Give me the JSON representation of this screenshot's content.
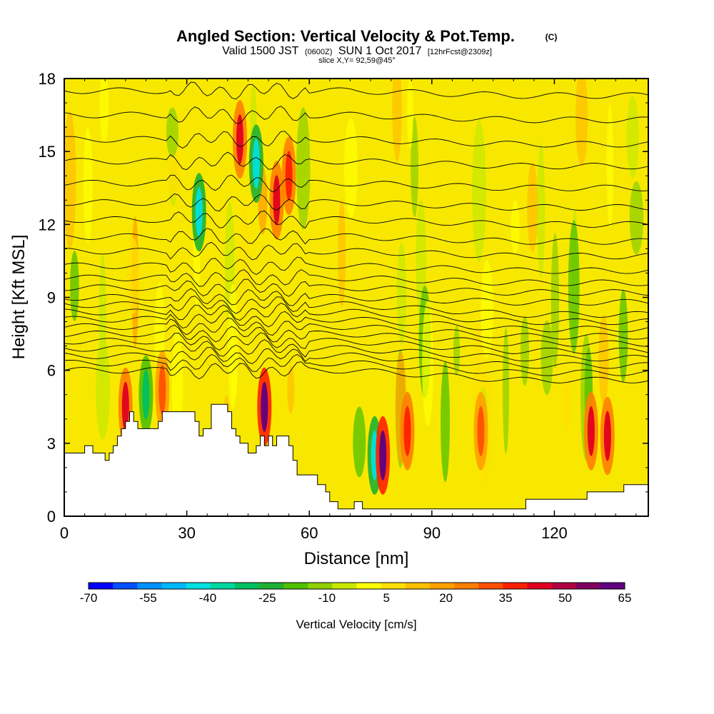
{
  "chart_data": {
    "type": "heatmap",
    "title": "Angled Section: Vertical Velocity & Pot.Temp.",
    "title_mark": "(C)",
    "subtitle_valid": "Valid 1500 JST",
    "subtitle_utc": "(0600Z)",
    "subtitle_date": "SUN 1 Oct 2017",
    "subtitle_fcst": "[12hrFcst@2309z]",
    "slice_label": "slice X,Y= 92,59@45°",
    "xlabel": "Distance [nm]",
    "ylabel": "Height [Kft MSL]",
    "xlim": [
      0,
      143
    ],
    "ylim": [
      0,
      18
    ],
    "xticks": [
      0,
      30,
      60,
      90,
      120
    ],
    "xtick_labels": [
      "0",
      "30",
      "60",
      "90",
      "120"
    ],
    "yticks": [
      0,
      3,
      6,
      9,
      12,
      15,
      18
    ],
    "ytick_labels": [
      "0",
      "3",
      "6",
      "9",
      "12",
      "15",
      "18"
    ],
    "colorbar": {
      "label": "Vertical Velocity [cm/s]",
      "range": [
        -70,
        65
      ],
      "tick_values": [
        -70,
        -55,
        -40,
        -25,
        -10,
        5,
        20,
        35,
        50,
        65
      ],
      "tick_labels": [
        "-70",
        "-55",
        "-40",
        "-25",
        "-10",
        "5",
        "20",
        "35",
        "50",
        "65"
      ],
      "colors": [
        "#0000ff",
        "#0050ff",
        "#0090ff",
        "#00b8ff",
        "#00e0e0",
        "#00d8a0",
        "#00c060",
        "#20b030",
        "#50c000",
        "#90d000",
        "#c8e800",
        "#ffff00",
        "#ffe000",
        "#ffc000",
        "#ffa000",
        "#ff8000",
        "#ff5000",
        "#ff2000",
        "#e00020",
        "#b00040",
        "#800060",
        "#600080"
      ]
    },
    "terrain_kft": [
      [
        0,
        2.6
      ],
      [
        5,
        2.6
      ],
      [
        5,
        2.9
      ],
      [
        7,
        2.9
      ],
      [
        7,
        2.6
      ],
      [
        10,
        2.6
      ],
      [
        10,
        2.3
      ],
      [
        11,
        2.3
      ],
      [
        11,
        2.6
      ],
      [
        12,
        2.6
      ],
      [
        12,
        2.9
      ],
      [
        13,
        2.9
      ],
      [
        13,
        3.3
      ],
      [
        14,
        3.3
      ],
      [
        14,
        3.6
      ],
      [
        15,
        3.6
      ],
      [
        15,
        3.9
      ],
      [
        16,
        3.9
      ],
      [
        16,
        4.3
      ],
      [
        17,
        4.3
      ],
      [
        17,
        3.9
      ],
      [
        18,
        3.9
      ],
      [
        18,
        3.6
      ],
      [
        23,
        3.6
      ],
      [
        23,
        3.9
      ],
      [
        24,
        3.9
      ],
      [
        24,
        4.3
      ],
      [
        32,
        4.3
      ],
      [
        32,
        3.9
      ],
      [
        33,
        3.9
      ],
      [
        33,
        3.3
      ],
      [
        34,
        3.3
      ],
      [
        34,
        3.6
      ],
      [
        36,
        3.6
      ],
      [
        36,
        4.6
      ],
      [
        40,
        4.6
      ],
      [
        40,
        4.3
      ],
      [
        41,
        4.3
      ],
      [
        41,
        3.6
      ],
      [
        42,
        3.6
      ],
      [
        42,
        3.3
      ],
      [
        43,
        3.3
      ],
      [
        43,
        3.0
      ],
      [
        45,
        3.0
      ],
      [
        45,
        2.6
      ],
      [
        47,
        2.6
      ],
      [
        47,
        2.9
      ],
      [
        48,
        2.9
      ],
      [
        48,
        3.3
      ],
      [
        49,
        3.3
      ],
      [
        49,
        2.9
      ],
      [
        50,
        2.9
      ],
      [
        50,
        3.3
      ],
      [
        51,
        3.3
      ],
      [
        51,
        2.9
      ],
      [
        52,
        2.9
      ],
      [
        52,
        3.3
      ],
      [
        55,
        3.3
      ],
      [
        55,
        2.9
      ],
      [
        56,
        2.9
      ],
      [
        56,
        2.3
      ],
      [
        57,
        2.3
      ],
      [
        57,
        1.7
      ],
      [
        62,
        1.7
      ],
      [
        62,
        1.3
      ],
      [
        64,
        1.3
      ],
      [
        64,
        1.0
      ],
      [
        65,
        1.0
      ],
      [
        65,
        0.6
      ],
      [
        67,
        0.6
      ],
      [
        67,
        0.3
      ],
      [
        71,
        0.3
      ],
      [
        71,
        0.6
      ],
      [
        73,
        0.6
      ],
      [
        73,
        0.3
      ],
      [
        113,
        0.3
      ],
      [
        113,
        0.7
      ],
      [
        128,
        0.7
      ],
      [
        128,
        1.0
      ],
      [
        137,
        1.0
      ],
      [
        137,
        1.3
      ],
      [
        143,
        1.3
      ]
    ],
    "theta_levels_surface_kft": [
      6.0,
      6.3,
      6.6,
      6.9,
      7.2,
      7.5,
      7.8,
      8.1,
      8.4,
      8.7,
      9.0,
      9.4,
      9.8,
      10.3,
      10.9,
      11.5,
      12.2,
      12.9,
      13.7,
      14.6,
      15.5,
      16.5,
      17.5
    ],
    "vertical_velocity_cells": [
      {
        "x": 15,
        "z": 4.5,
        "w": 45
      },
      {
        "x": 20,
        "z": 5.0,
        "w": -30
      },
      {
        "x": 24,
        "z": 5.2,
        "w": 30
      },
      {
        "x": 33,
        "z": 12.5,
        "w": -40
      },
      {
        "x": 43,
        "z": 15.5,
        "w": 45
      },
      {
        "x": 47,
        "z": 14.5,
        "w": -40
      },
      {
        "x": 49,
        "z": 4.5,
        "w": 60
      },
      {
        "x": 52,
        "z": 13,
        "w": 45
      },
      {
        "x": 55,
        "z": 14,
        "w": 40
      },
      {
        "x": 76,
        "z": 2.5,
        "w": -45
      },
      {
        "x": 78,
        "z": 2.5,
        "w": 60
      },
      {
        "x": 84,
        "z": 3.5,
        "w": 40
      },
      {
        "x": 102,
        "z": 3.5,
        "w": 30
      },
      {
        "x": 129,
        "z": 3.5,
        "w": 45
      },
      {
        "x": 133,
        "z": 3.3,
        "w": 45
      }
    ]
  }
}
